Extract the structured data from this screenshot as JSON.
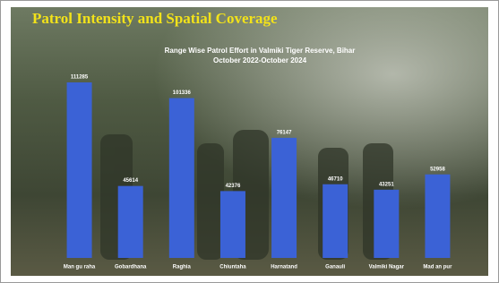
{
  "chart_data": {
    "type": "bar",
    "title": "Patrol Intensity and Spatial Coverage",
    "subtitle": [
      "Range Wise Patrol Effort in Valmiki Tiger Reserve, Bihar",
      "October 2022-October 2024"
    ],
    "categories": [
      "Man gu raha",
      "Gobardhana",
      "Raghia",
      "Chiuntaha",
      "Harnatand",
      "Ganauli",
      "Valmiki Nagar",
      "Mad an pur"
    ],
    "values": [
      111285,
      45614,
      101336,
      42376,
      76147,
      46710,
      43251,
      52958
    ],
    "color": "#3b62d6"
  }
}
